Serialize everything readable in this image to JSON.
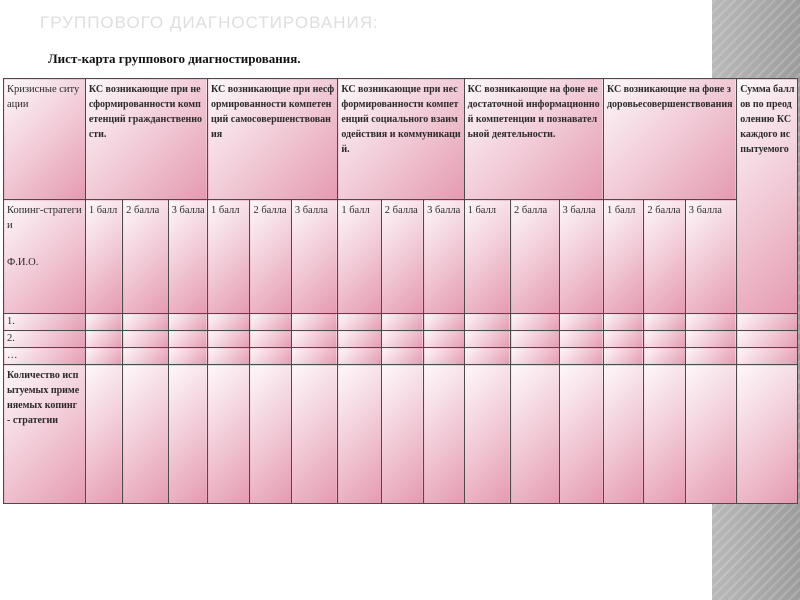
{
  "slide": {
    "heading": "ГРУППОВОГО ДИАГНОСТИРОВАНИЯ:",
    "sheet_title": "Лист-карта группового диагностирования."
  },
  "table": {
    "corner_top": "Кризисные ситуации",
    "corner_bottom_line1": "Копинг-стратегии",
    "corner_bottom_line2": "Ф.И.О.",
    "groups": [
      {
        "label": "КС возникающие при несформированности компетенций гражданственности.",
        "points": [
          "1 балл",
          "2 балла",
          "3 балла"
        ]
      },
      {
        "label": "КС возникающие при несформированности компетенций самосовершенствования",
        "points": [
          "1 балл",
          "2 балла",
          "3 балла"
        ]
      },
      {
        "label": "КС возникающие при несформированности компетенций социального взаимодействия и коммуникаций.",
        "points": [
          "1 балл",
          "2 балла",
          "3 балла"
        ]
      },
      {
        "label": "КС возникающие на фоне недостаточной информационной компетенции и познавательной деятельности.",
        "points": [
          "1 балл",
          "2 балла",
          "3 балла"
        ]
      },
      {
        "label": "КС возникающие на фоне здоровьесовершенствования",
        "points": [
          "1 балл",
          "2 балла",
          "3 балла"
        ]
      }
    ],
    "sum_header": "Сумма баллов по преодолению КС каждого испытуемого",
    "rows": [
      "1.",
      "2.",
      "…"
    ],
    "count_row_label": "Количество испытуемых применяемых копинг - стратегии"
  }
}
